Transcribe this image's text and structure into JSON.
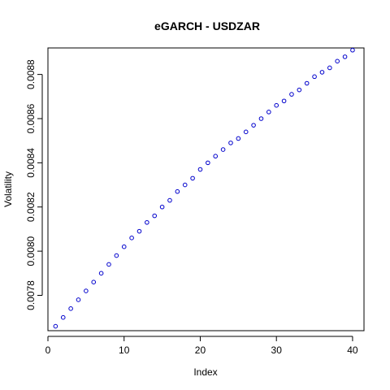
{
  "chart_data": {
    "type": "scatter",
    "title": "eGARCH - USDZAR",
    "xlabel": "Index",
    "ylabel": "Volatility",
    "xlim": [
      0,
      41.5
    ],
    "ylim": [
      0.00764,
      0.00892
    ],
    "x_ticks": [
      0,
      10,
      20,
      30,
      40
    ],
    "x_tick_labels": [
      "0",
      "10",
      "20",
      "30",
      "40"
    ],
    "y_ticks": [
      0.0078,
      0.008,
      0.0082,
      0.0084,
      0.0086,
      0.0088
    ],
    "y_tick_labels": [
      "0.0078",
      "0.0080",
      "0.0082",
      "0.0084",
      "0.0086",
      "0.0088"
    ],
    "grid": false,
    "marker": "open-circle",
    "color": "#0000cc",
    "x": [
      1,
      2,
      3,
      4,
      5,
      6,
      7,
      8,
      9,
      10,
      11,
      12,
      13,
      14,
      15,
      16,
      17,
      18,
      19,
      20,
      21,
      22,
      23,
      24,
      25,
      26,
      27,
      28,
      29,
      30,
      31,
      32,
      33,
      34,
      35,
      36,
      37,
      38,
      39,
      40
    ],
    "values": [
      0.00766,
      0.0077,
      0.00774,
      0.00778,
      0.00782,
      0.00786,
      0.0079,
      0.00794,
      0.00798,
      0.00802,
      0.00806,
      0.00809,
      0.00813,
      0.00816,
      0.0082,
      0.00823,
      0.00827,
      0.0083,
      0.00833,
      0.00837,
      0.0084,
      0.00843,
      0.00846,
      0.00849,
      0.00851,
      0.00854,
      0.00857,
      0.0086,
      0.00863,
      0.00866,
      0.00868,
      0.00871,
      0.00873,
      0.00876,
      0.00879,
      0.00881,
      0.00883,
      0.00886,
      0.00888,
      0.00891
    ]
  }
}
